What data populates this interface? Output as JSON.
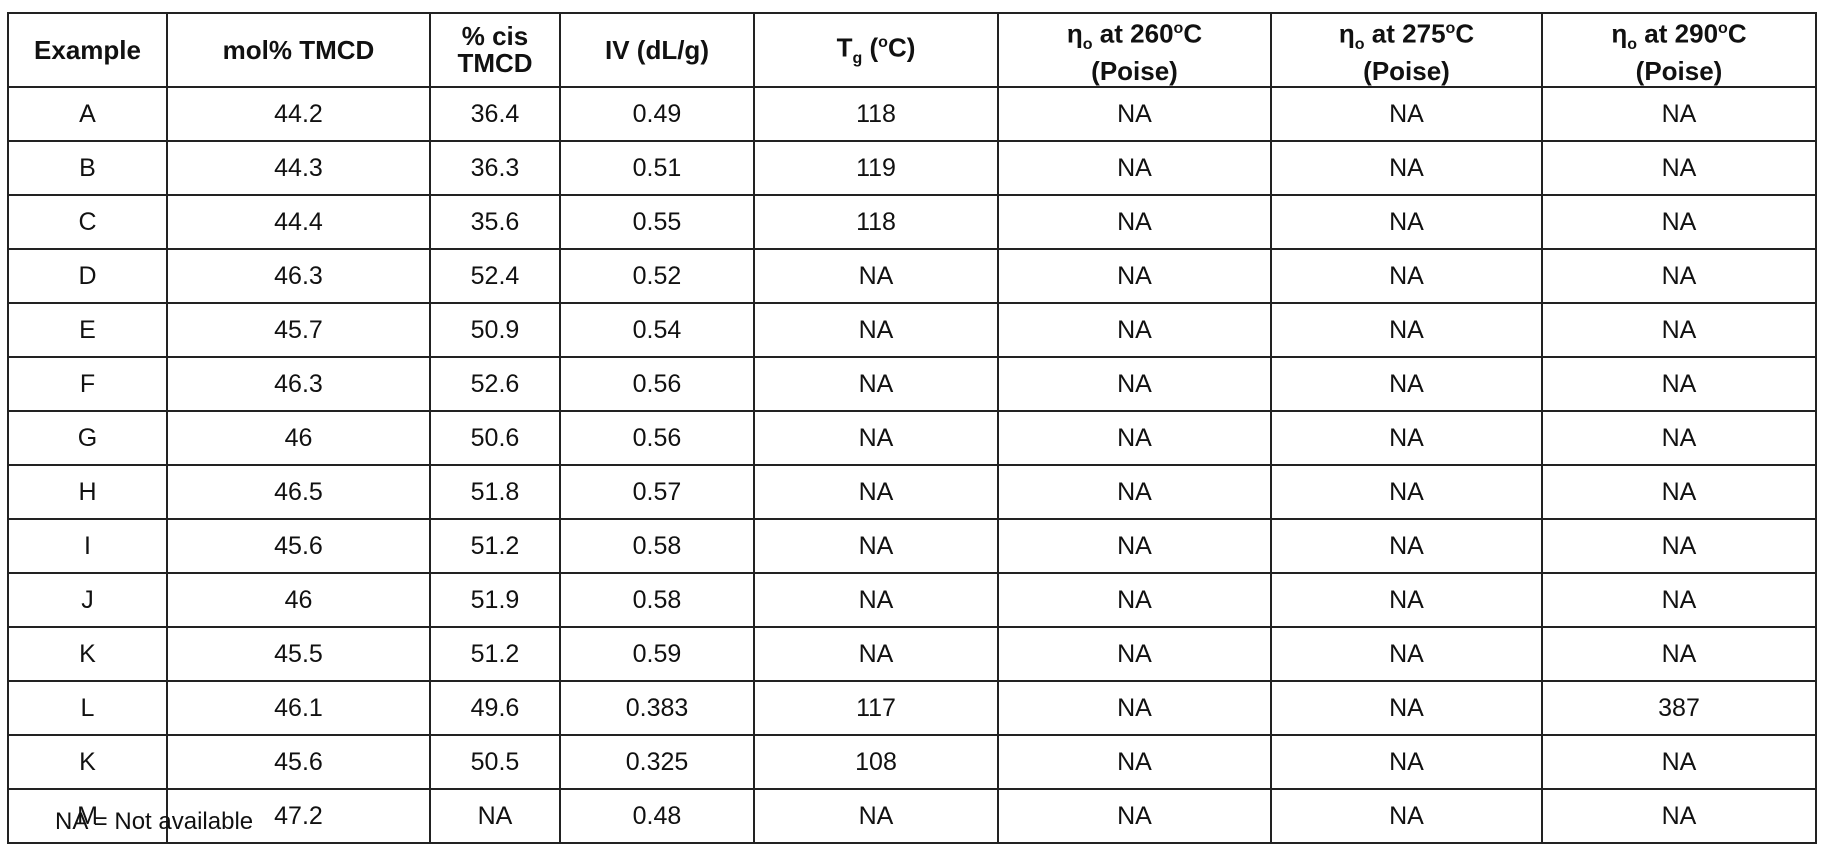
{
  "columns": [
    "Example",
    "mol% TMCD",
    "% cis\nTMCD",
    "IV (dL/g)",
    "Tg (°C)",
    "ηo at 260°C\n(Poise)",
    "ηo at 275°C\n(Poise)",
    "ηo at 290°C\n(Poise)"
  ],
  "rows": [
    [
      "A",
      "44.2",
      "36.4",
      "0.49",
      "118",
      "NA",
      "NA",
      "NA"
    ],
    [
      "B",
      "44.3",
      "36.3",
      "0.51",
      "119",
      "NA",
      "NA",
      "NA"
    ],
    [
      "C",
      "44.4",
      "35.6",
      "0.55",
      "118",
      "NA",
      "NA",
      "NA"
    ],
    [
      "D",
      "46.3",
      "52.4",
      "0.52",
      "NA",
      "NA",
      "NA",
      "NA"
    ],
    [
      "E",
      "45.7",
      "50.9",
      "0.54",
      "NA",
      "NA",
      "NA",
      "NA"
    ],
    [
      "F",
      "46.3",
      "52.6",
      "0.56",
      "NA",
      "NA",
      "NA",
      "NA"
    ],
    [
      "G",
      "46",
      "50.6",
      "0.56",
      "NA",
      "NA",
      "NA",
      "NA"
    ],
    [
      "H",
      "46.5",
      "51.8",
      "0.57",
      "NA",
      "NA",
      "NA",
      "NA"
    ],
    [
      "I",
      "45.6",
      "51.2",
      "0.58",
      "NA",
      "NA",
      "NA",
      "NA"
    ],
    [
      "J",
      "46",
      "51.9",
      "0.58",
      "NA",
      "NA",
      "NA",
      "NA"
    ],
    [
      "K",
      "45.5",
      "51.2",
      "0.59",
      "NA",
      "NA",
      "NA",
      "NA"
    ],
    [
      "L",
      "46.1",
      "49.6",
      "0.383",
      "117",
      "NA",
      "NA",
      "387"
    ],
    [
      "K",
      "45.6",
      "50.5",
      "0.325",
      "108",
      "NA",
      "NA",
      "NA"
    ],
    [
      "M",
      "47.2",
      "NA",
      "0.48",
      "NA",
      "NA",
      "NA",
      "NA"
    ]
  ],
  "footnote": "NA = Not available"
}
